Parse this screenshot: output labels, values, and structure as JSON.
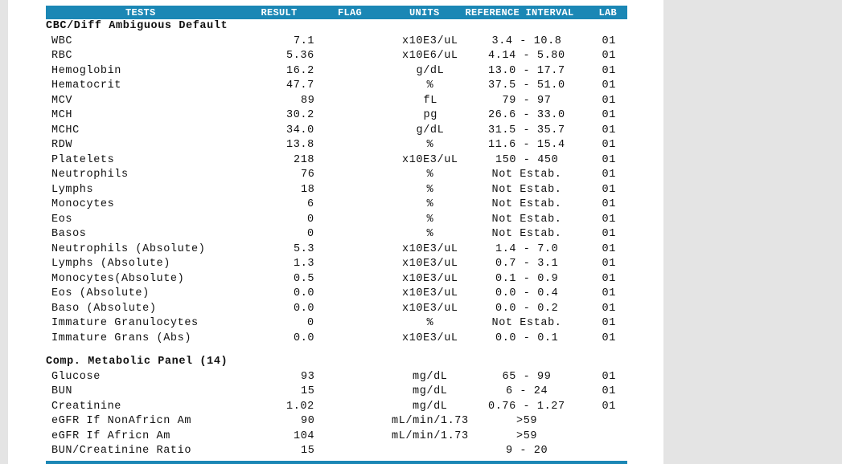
{
  "header": {
    "columns": [
      "TESTS",
      "RESULT",
      "FLAG",
      "UNITS",
      "REFERENCE INTERVAL",
      "LAB"
    ]
  },
  "sections": [
    {
      "title": "CBC/Diff Ambiguous Default",
      "rows": [
        {
          "test": "WBC",
          "result": "7.1",
          "units": "x10E3/uL",
          "reference": "3.4 - 10.8",
          "lab": "01"
        },
        {
          "test": "RBC",
          "result": "5.36",
          "units": "x10E6/uL",
          "reference": "4.14 - 5.80",
          "lab": "01"
        },
        {
          "test": "Hemoglobin",
          "result": "16.2",
          "units": "g/dL",
          "reference": "13.0 - 17.7",
          "lab": "01"
        },
        {
          "test": "Hematocrit",
          "result": "47.7",
          "units": "%",
          "reference": "37.5 - 51.0",
          "lab": "01"
        },
        {
          "test": "MCV",
          "result": "89",
          "units": "fL",
          "reference": "79 - 97",
          "lab": "01"
        },
        {
          "test": "MCH",
          "result": "30.2",
          "units": "pg",
          "reference": "26.6 - 33.0",
          "lab": "01"
        },
        {
          "test": "MCHC",
          "result": "34.0",
          "units": "g/dL",
          "reference": "31.5 - 35.7",
          "lab": "01"
        },
        {
          "test": "RDW",
          "result": "13.8",
          "units": "%",
          "reference": "11.6 - 15.4",
          "lab": "01"
        },
        {
          "test": "Platelets",
          "result": "218",
          "units": "x10E3/uL",
          "reference": "150 - 450",
          "lab": "01"
        },
        {
          "test": "Neutrophils",
          "result": "76",
          "units": "%",
          "reference": "Not Estab.",
          "lab": "01"
        },
        {
          "test": "Lymphs",
          "result": "18",
          "units": "%",
          "reference": "Not Estab.",
          "lab": "01"
        },
        {
          "test": "Monocytes",
          "result": "6",
          "units": "%",
          "reference": "Not Estab.",
          "lab": "01"
        },
        {
          "test": "Eos",
          "result": "0",
          "units": "%",
          "reference": "Not Estab.",
          "lab": "01"
        },
        {
          "test": "Basos",
          "result": "0",
          "units": "%",
          "reference": "Not Estab.",
          "lab": "01"
        },
        {
          "test": "Neutrophils (Absolute)",
          "result": "5.3",
          "units": "x10E3/uL",
          "reference": "1.4 - 7.0",
          "lab": "01"
        },
        {
          "test": "Lymphs (Absolute)",
          "result": "1.3",
          "units": "x10E3/uL",
          "reference": "0.7 - 3.1",
          "lab": "01"
        },
        {
          "test": "Monocytes(Absolute)",
          "result": "0.5",
          "units": "x10E3/uL",
          "reference": "0.1 - 0.9",
          "lab": "01"
        },
        {
          "test": "Eos (Absolute)",
          "result": "0.0",
          "units": "x10E3/uL",
          "reference": "0.0 - 0.4",
          "lab": "01"
        },
        {
          "test": "Baso (Absolute)",
          "result": "0.0",
          "units": "x10E3/uL",
          "reference": "0.0 - 0.2",
          "lab": "01"
        },
        {
          "test": "Immature Granulocytes",
          "result": "0",
          "units": "%",
          "reference": "Not Estab.",
          "lab": "01"
        },
        {
          "test": "Immature Grans (Abs)",
          "result": "0.0",
          "units": "x10E3/uL",
          "reference": "0.0 - 0.1",
          "lab": "01"
        }
      ]
    },
    {
      "title": "Comp. Metabolic Panel (14)",
      "rows": [
        {
          "test": "Glucose",
          "result": "93",
          "units": "mg/dL",
          "reference": "65 - 99",
          "lab": "01"
        },
        {
          "test": "BUN",
          "result": "15",
          "units": "mg/dL",
          "reference": "6 - 24",
          "lab": "01"
        },
        {
          "test": "Creatinine",
          "result": "1.02",
          "units": "mg/dL",
          "reference": "0.76 - 1.27",
          "lab": "01"
        },
        {
          "test": "eGFR If NonAfricn Am",
          "result": "90",
          "units": "mL/min/1.73",
          "reference": ">59"
        },
        {
          "test": "eGFR If Africn Am",
          "result": "104",
          "units": "mL/min/1.73",
          "reference": ">59"
        },
        {
          "test": "BUN/Creatinine Ratio",
          "result": "15",
          "reference": "9 - 20"
        }
      ]
    }
  ]
}
